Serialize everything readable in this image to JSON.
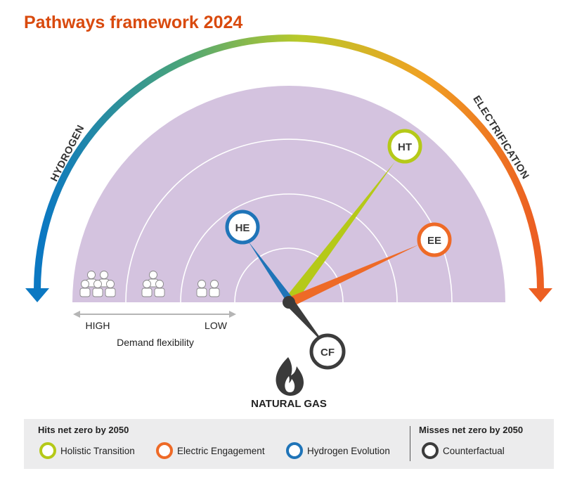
{
  "title": "Pathways framework 2024",
  "arc_labels": {
    "left": "HYDROGEN",
    "right": "ELECTRIFICATION"
  },
  "axis": {
    "high": "HIGH",
    "low": "LOW",
    "caption": "Demand flexibility"
  },
  "bottom_label": "NATURAL GAS",
  "markers": [
    {
      "code": "HT",
      "color": "#b5c918"
    },
    {
      "code": "EE",
      "color": "#ee6a27"
    },
    {
      "code": "HE",
      "color": "#1f74b8"
    },
    {
      "code": "CF",
      "color": "#3c3c3c"
    }
  ],
  "legend": {
    "hits_heading": "Hits net zero by 2050",
    "misses_heading": "Misses net zero by 2050",
    "items": [
      {
        "label": "Holistic Transition",
        "color": "#b5c918"
      },
      {
        "label": "Electric Engagement",
        "color": "#ee6a27"
      },
      {
        "label": "Hydrogen Evolution",
        "color": "#1f74b8"
      },
      {
        "label": "Counterfactual",
        "color": "#3c3c3c"
      }
    ]
  },
  "colors": {
    "semicircle": "#d4c3df",
    "accent": "#d94a0e"
  }
}
